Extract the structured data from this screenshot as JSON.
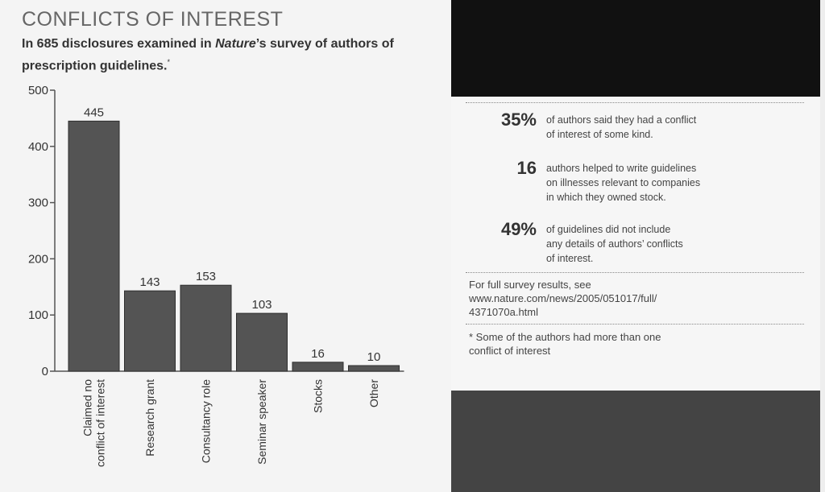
{
  "header": {
    "title": "CONFLICTS OF INTEREST",
    "subtitle_before": "In 685 disclosures examined in ",
    "subtitle_italic": "Nature",
    "subtitle_after": "’s survey of authors of prescription guidelines.",
    "subtitle_mark": "*"
  },
  "chart_data": {
    "type": "bar",
    "categories": [
      "Claimed no conflict of interest",
      "Research grant",
      "Consultancy role",
      "Seminar speaker",
      "Stocks",
      "Other"
    ],
    "category_lines": [
      [
        "Claimed no",
        "conflict of interest"
      ],
      [
        "Research grant"
      ],
      [
        "Consultancy role"
      ],
      [
        "Seminar speaker"
      ],
      [
        "Stocks"
      ],
      [
        "Other"
      ]
    ],
    "values": [
      445,
      143,
      153,
      103,
      16,
      10
    ],
    "yticks": [
      0,
      100,
      200,
      300,
      400,
      500
    ],
    "ylim": [
      0,
      500
    ],
    "bar_color": "#545454",
    "grid": false
  },
  "stats": [
    {
      "number": "35%",
      "text_lines": [
        "of authors said they had a conflict",
        "of interest of some kind."
      ]
    },
    {
      "number": "16",
      "text_lines": [
        "authors helped to write guidelines",
        "on illnesses relevant to companies",
        "in which they owned stock."
      ]
    },
    {
      "number": "49%",
      "text_lines": [
        "of guidelines did not include",
        "any details of authors’ conflicts",
        "of interest."
      ]
    }
  ],
  "source": {
    "lines": [
      "For full survey results, see",
      "www.nature.com/news/2005/051017/full/",
      "4371070a.html"
    ]
  },
  "footnote": {
    "lines": [
      "* Some of the authors had more than one",
      "conflict of interest"
    ]
  }
}
